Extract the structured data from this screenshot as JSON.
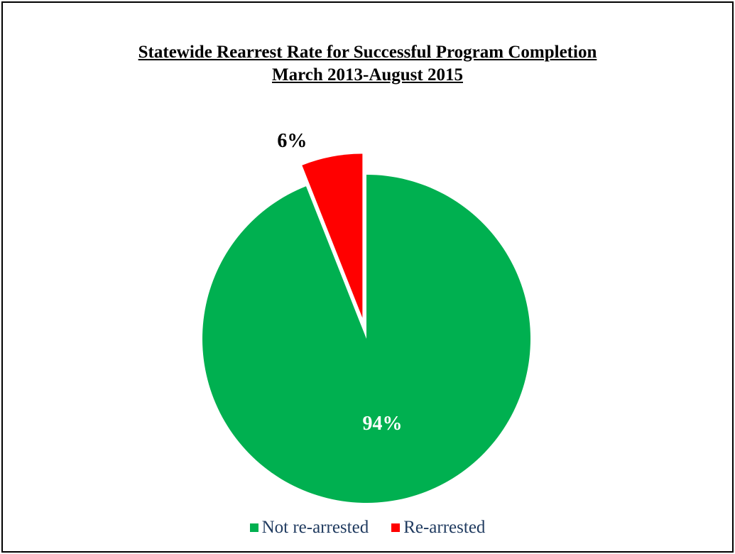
{
  "chart_data": {
    "type": "pie",
    "title": "Statewide Rearrest Rate for Successful Program Completion",
    "subtitle": "March 2013-August 2015",
    "legend_position": "bottom",
    "slices": [
      {
        "name": "Not re-arrested",
        "value": 94,
        "label": "94%",
        "color": "#00b050",
        "label_color": "#ffffff",
        "exploded": false
      },
      {
        "name": "Re-arrested",
        "value": 6,
        "label": "6%",
        "color": "#ff0000",
        "label_color": "#000000",
        "exploded": true
      }
    ]
  }
}
